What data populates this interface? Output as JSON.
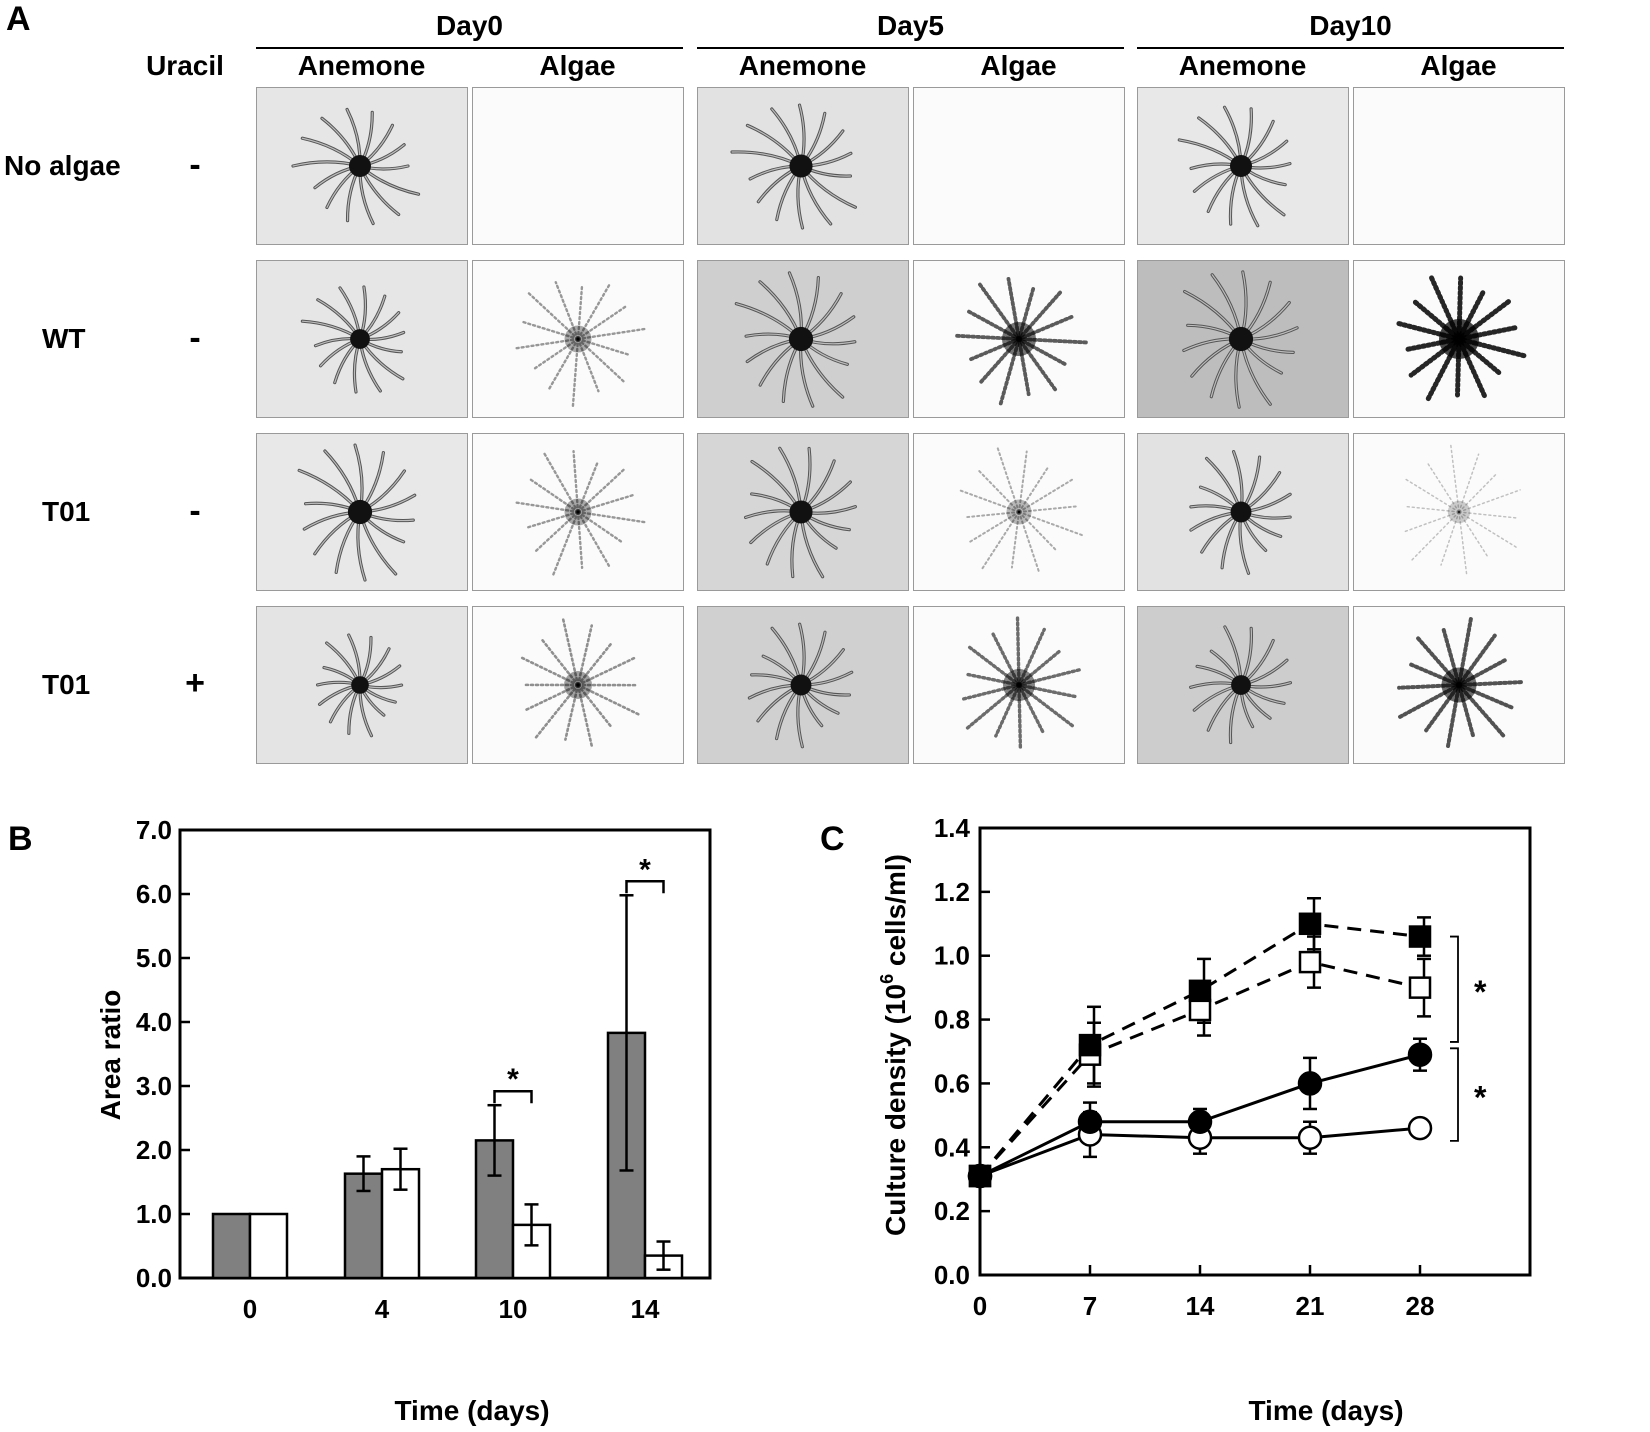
{
  "panel_a": {
    "letter": "A",
    "uracil_label": "Uracil",
    "days": [
      "Day0",
      "Day5",
      "Day10"
    ],
    "subcols": [
      "Anemone",
      "Algae"
    ],
    "rows": [
      {
        "label": "No algae",
        "uracil": "-"
      },
      {
        "label": "WT",
        "uracil": "-"
      },
      {
        "label": "T01",
        "uracil": "-"
      },
      {
        "label": "T01",
        "uracil": "+"
      }
    ]
  },
  "chart_data": [
    {
      "type": "bar",
      "panel": "B",
      "title": "",
      "xlabel": "Time (days)",
      "ylabel": "Area ratio",
      "ylim": [
        0,
        7
      ],
      "yticks": [
        "0.0",
        "1.0",
        "2.0",
        "3.0",
        "4.0",
        "5.0",
        "6.0",
        "7.0"
      ],
      "categories": [
        "0",
        "4",
        "10",
        "14"
      ],
      "series": [
        {
          "name": "gray",
          "color": "#808080",
          "values": [
            1.0,
            1.63,
            2.15,
            3.83
          ],
          "errors": [
            0,
            0.27,
            0.55,
            2.15
          ]
        },
        {
          "name": "white",
          "color": "#ffffff",
          "values": [
            1.0,
            1.7,
            0.83,
            0.35
          ],
          "errors": [
            0,
            0.32,
            0.32,
            0.22
          ]
        }
      ],
      "significance": [
        {
          "category": "10",
          "label": "*"
        },
        {
          "category": "14",
          "label": "*"
        }
      ]
    },
    {
      "type": "line",
      "panel": "C",
      "title": "",
      "xlabel": "Time (days)",
      "ylabel_prefix": "Culture density (10",
      "ylabel_sup": "6",
      "ylabel_suffix": " cells/ml)",
      "ylim": [
        0,
        1.4
      ],
      "xlim": [
        0,
        35
      ],
      "x": [
        0,
        7,
        14,
        21,
        28
      ],
      "yticks": [
        "0.0",
        "0.2",
        "0.4",
        "0.6",
        "0.8",
        "1.0",
        "1.2",
        "1.4"
      ],
      "xticks": [
        "0",
        "7",
        "14",
        "21",
        "28"
      ],
      "series": [
        {
          "name": "filled-square",
          "marker": "square",
          "fill": "#000000",
          "dash": true,
          "values": [
            0.31,
            0.72,
            0.89,
            1.1,
            1.06
          ],
          "errors": [
            0.03,
            0.12,
            0.1,
            0.08,
            0.06
          ]
        },
        {
          "name": "open-square",
          "marker": "square",
          "fill": "#ffffff",
          "dash": true,
          "values": [
            0.31,
            0.69,
            0.83,
            0.98,
            0.9
          ],
          "errors": [
            0.03,
            0.1,
            0.08,
            0.08,
            0.09
          ]
        },
        {
          "name": "filled-circle",
          "marker": "circle",
          "fill": "#000000",
          "dash": false,
          "values": [
            0.31,
            0.48,
            0.48,
            0.6,
            0.69
          ],
          "errors": [
            0.03,
            0.06,
            0.04,
            0.08,
            0.05
          ]
        },
        {
          "name": "open-circle",
          "marker": "circle",
          "fill": "#ffffff",
          "dash": false,
          "values": [
            0.31,
            0.44,
            0.43,
            0.43,
            0.46
          ],
          "errors": [
            0.03,
            0.07,
            0.05,
            0.05,
            0.02
          ]
        }
      ],
      "significance": [
        "*",
        "*"
      ]
    }
  ]
}
